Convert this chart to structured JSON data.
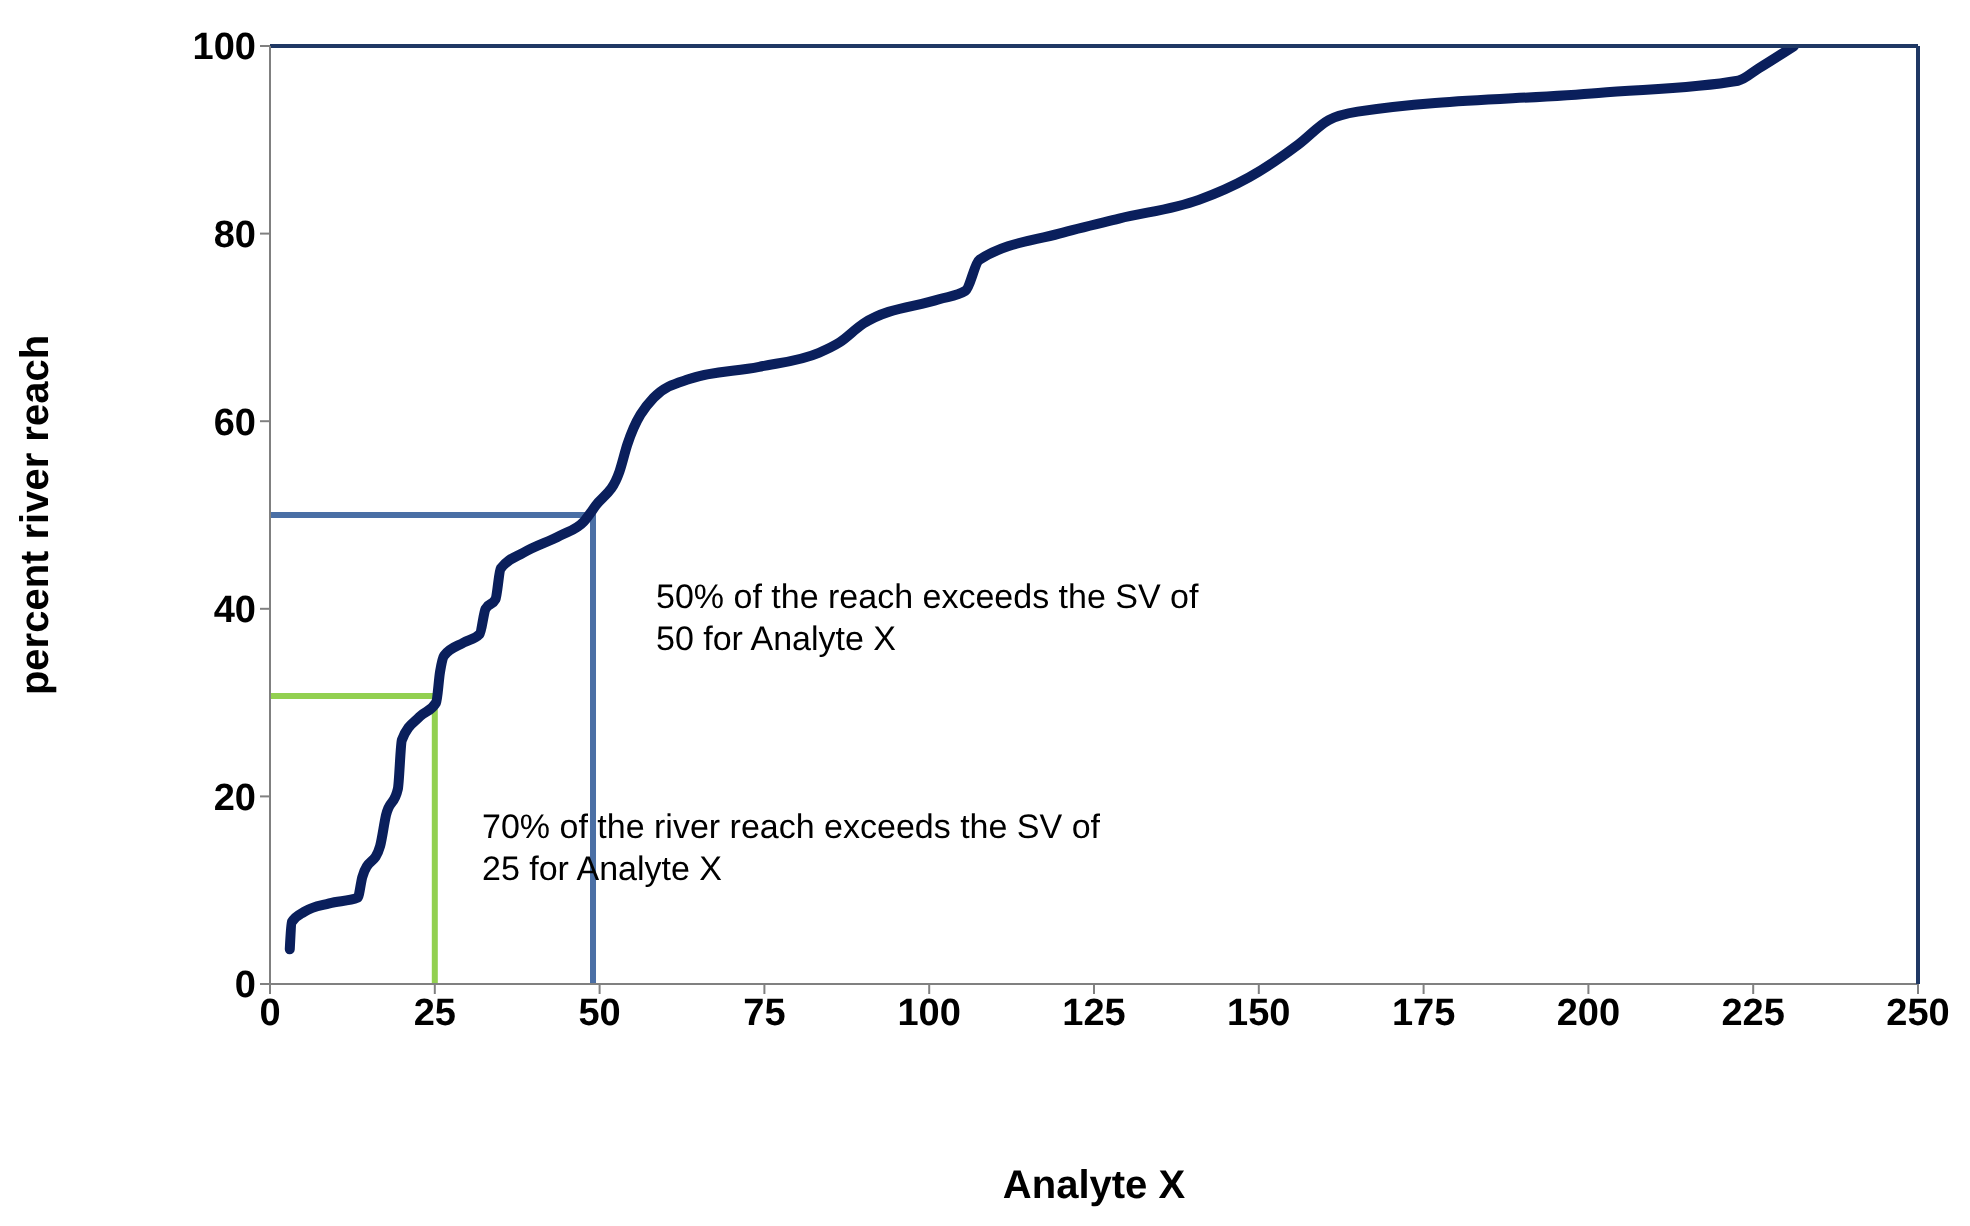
{
  "chart_data": {
    "type": "line",
    "xlabel": "Analyte X",
    "ylabel": "percent river reach",
    "xlim": [
      0,
      250
    ],
    "xticks": [
      0,
      25,
      50,
      75,
      100,
      125,
      150,
      175,
      200,
      225,
      250
    ],
    "ylim": [
      0,
      100
    ],
    "yticks": [
      0,
      20,
      40,
      60,
      80,
      100
    ],
    "marker": "none",
    "line_style": "solid",
    "series": [
      {
        "color": "#0a1f5c",
        "x": [
          3,
          3.3,
          5.2,
          9,
          13.3,
          14,
          16.7,
          17.6,
          19.4,
          20,
          22.7,
          25.2,
          25.8,
          26.4,
          29.4,
          31.8,
          32.7,
          34.2,
          35,
          38.5,
          44,
          47.6,
          49.4,
          53,
          54.2,
          58.2,
          63.6,
          74.2,
          83.3,
          86.4,
          90,
          101.5,
          105.5,
          107.6,
          119.7,
          128.8,
          140.9,
          148.5,
          156,
          160.6,
          165,
          201.5,
          222.7,
          225.8,
          231.2
        ],
        "values": [
          3.7,
          6.6,
          7.7,
          8.6,
          9.2,
          11.4,
          14.7,
          18,
          20.8,
          26,
          28.5,
          30,
          33.3,
          35,
          36.4,
          37.3,
          40,
          41,
          44.3,
          46,
          47.8,
          49.3,
          51,
          54.6,
          57.5,
          62.5,
          64.5,
          65.8,
          67.3,
          68.4,
          70.4,
          73,
          73.9,
          77.2,
          80,
          81.6,
          83.6,
          86,
          89.5,
          92.1,
          93,
          95,
          96.3,
          97.6,
          100
        ]
      },
      {
        "color": "#92d050",
        "x": [
          0,
          25,
          25
        ],
        "values": [
          30.7,
          30.7,
          0
        ]
      },
      {
        "color": "#4a6fa5",
        "x": [
          0,
          49,
          49
        ],
        "values": [
          50,
          50,
          0
        ]
      }
    ],
    "annotations": [
      "50% of the reach exceeds the SV of\n50 for Analyte X",
      "70% of the river reach exceeds the SV of\n25 for Analyte X"
    ]
  }
}
